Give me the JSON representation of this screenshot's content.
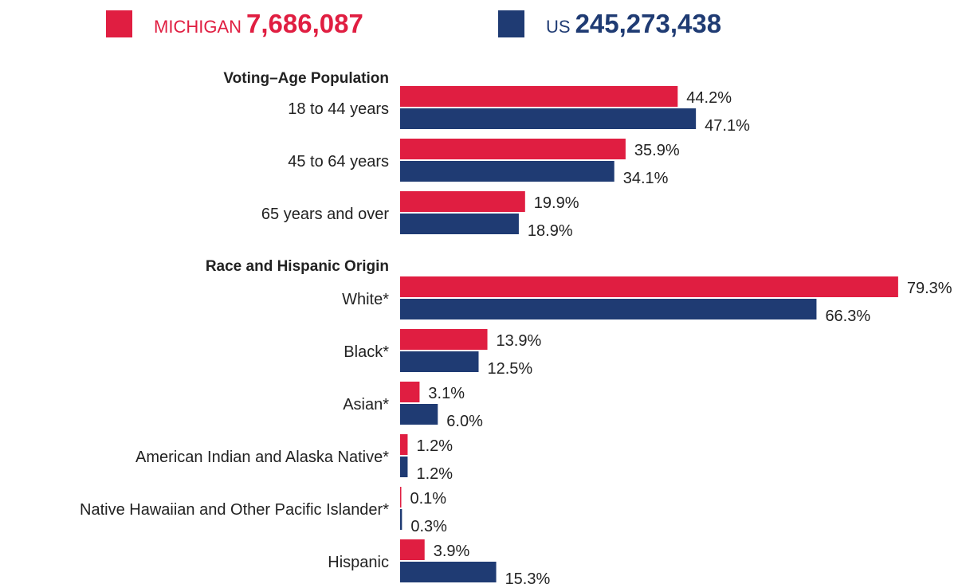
{
  "chart_data": {
    "type": "bar",
    "orientation": "horizontal",
    "section_titles": [
      "Voting–Age Population",
      "Race and Hispanic Origin"
    ],
    "categories": [
      "18 to 44 years",
      "45 to 64 years",
      "65 years and over",
      "White*",
      "Black*",
      "Asian*",
      "American Indian and Alaska Native*",
      "Native Hawaiian and Other Pacific Islander*",
      "Hispanic"
    ],
    "series": [
      {
        "name": "MICHIGAN",
        "total": "7,686,087",
        "color": "#e01e41",
        "values": [
          44.2,
          35.9,
          19.9,
          79.3,
          13.9,
          3.1,
          1.2,
          0.1,
          3.9
        ],
        "value_labels": [
          "44.2%",
          "35.9%",
          "19.9%",
          "79.3%",
          "13.9%",
          "3.1%",
          "1.2%",
          "0.1%",
          "3.9%"
        ]
      },
      {
        "name": "US",
        "total": "245,273,438",
        "color": "#1f3b73",
        "values": [
          47.1,
          34.1,
          18.9,
          66.3,
          12.5,
          6.0,
          1.2,
          0.3,
          15.3
        ],
        "value_labels": [
          "47.1%",
          "34.1%",
          "18.9%",
          "66.3%",
          "12.5%",
          "6.0%",
          "1.2%",
          "0.3%",
          "15.3%"
        ]
      }
    ]
  }
}
